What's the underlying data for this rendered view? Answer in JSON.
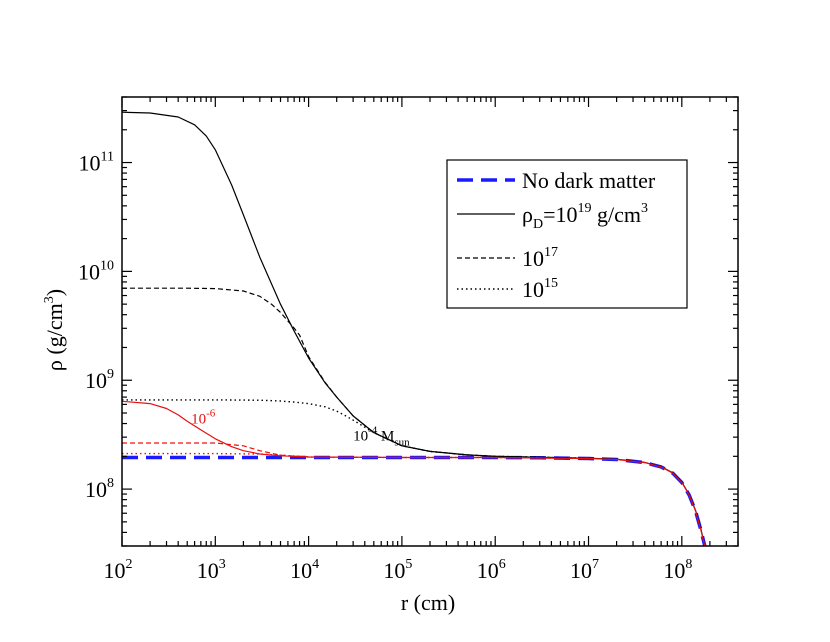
{
  "chart_data": {
    "type": "line",
    "title": "",
    "xlabel": "r (cm)",
    "ylabel_main": "ρ (g/cm",
    "ylabel_sup": "3",
    "ylabel_close": ")",
    "xscale": "log",
    "yscale": "log",
    "xlim": [
      100,
      400000000
    ],
    "ylim": [
      30000000,
      400000000000
    ],
    "x_ticks": [
      {
        "value": 100,
        "base": "10",
        "exp": "2"
      },
      {
        "value": 1000,
        "base": "10",
        "exp": "3"
      },
      {
        "value": 10000,
        "base": "10",
        "exp": "4"
      },
      {
        "value": 100000,
        "base": "10",
        "exp": "5"
      },
      {
        "value": 1000000,
        "base": "10",
        "exp": "6"
      },
      {
        "value": 10000000,
        "base": "10",
        "exp": "7"
      },
      {
        "value": 100000000,
        "base": "10",
        "exp": "8"
      }
    ],
    "y_ticks": [
      {
        "value": 100000000,
        "base": "10",
        "exp": "8"
      },
      {
        "value": 1000000000,
        "base": "10",
        "exp": "9"
      },
      {
        "value": 10000000000,
        "base": "10",
        "exp": "10"
      },
      {
        "value": 100000000000,
        "base": "10",
        "exp": "11"
      }
    ],
    "legend_position": "top-right",
    "legend": [
      {
        "series": "no-dm",
        "text": "No dark matter"
      },
      {
        "series": "dm19",
        "text": "ρ",
        "sub": "D",
        "mid": "=10",
        "sup": "19",
        "tail": " g/cm",
        "sup2": "3"
      },
      {
        "series": "dm17",
        "text": "10",
        "sup": "17"
      },
      {
        "series": "dm15",
        "text": "10",
        "sup": "15"
      }
    ],
    "annotations": [
      {
        "id": "mass-black",
        "base": "10",
        "sup": "-4",
        "rest": " M",
        "sub": "sun",
        "x": 30000,
        "y": 280000000,
        "color": "#000000"
      },
      {
        "id": "mass-red",
        "base": "10",
        "sup": "-6",
        "x": 550,
        "y": 400000000,
        "color": "#e8100f"
      }
    ],
    "series": [
      {
        "name": "no-dm",
        "label": "No dark matter",
        "color": "#1a1aff",
        "style": "dash-thick",
        "x": [
          100,
          1000,
          10000,
          100000,
          1000000,
          3000000,
          10000000,
          20000000,
          40000000,
          60000000,
          80000000,
          100000000,
          120000000,
          140000000,
          160000000,
          180000000
        ],
        "y": [
          195000000,
          195000000,
          195000000,
          195000000,
          195000000,
          194000000,
          191000000,
          187000000,
          175000000,
          160000000,
          140000000,
          115000000,
          88000000,
          63000000,
          42000000,
          28000000
        ]
      },
      {
        "name": "dm19",
        "label": "ρD=1e19 g/cm3, 1e-4 Msun",
        "color": "#000000",
        "style": "solid",
        "x": [
          100,
          200,
          400,
          600,
          800,
          1000,
          1500,
          2000,
          3000,
          5000,
          7000,
          10000,
          15000,
          20000,
          30000,
          50000,
          100000,
          200000,
          500000,
          1000000,
          3000000,
          10000000,
          20000000,
          40000000,
          60000000,
          80000000,
          100000000,
          120000000,
          140000000,
          160000000,
          180000000
        ],
        "y": [
          290000000000,
          285000000000,
          262000000000,
          222000000000,
          175000000000,
          131000000000,
          62000000000,
          33000000000,
          13500000000,
          5000000000,
          2820000000,
          1600000000,
          950000000,
          700000000,
          470000000,
          330000000,
          250000000,
          222000000,
          206000000,
          200000000,
          196000000,
          192000000,
          188000000,
          176000000,
          161000000,
          141000000,
          116000000,
          89000000,
          64000000,
          43000000,
          28000000
        ]
      },
      {
        "name": "dm17",
        "label": "1e17",
        "color": "#000000",
        "style": "dash",
        "x": [
          100,
          500,
          1000,
          2000,
          3000,
          4000,
          5000,
          6000,
          7000,
          8000,
          10000,
          15000,
          20000,
          30000,
          50000,
          100000,
          200000,
          500000,
          1000000,
          10000000
        ],
        "y": [
          7000000000,
          7000000000,
          6950000000,
          6600000000,
          5900000000,
          5000000000,
          4200000000,
          3500000000,
          3000000000,
          2600000000,
          1650000000,
          960000000,
          700000000,
          470000000,
          330000000,
          250000000,
          222000000,
          206000000,
          200000000,
          192000000
        ]
      },
      {
        "name": "dm15",
        "label": "1e15",
        "color": "#000000",
        "style": "dot",
        "x": [
          100,
          1000,
          3000,
          5000,
          7000,
          10000,
          15000,
          20000,
          25000,
          30000,
          40000,
          50000,
          100000,
          200000,
          500000,
          1000000,
          10000000
        ],
        "y": [
          660000000,
          660000000,
          655000000,
          645000000,
          630000000,
          610000000,
          570000000,
          520000000,
          470000000,
          430000000,
          370000000,
          330000000,
          250000000,
          222000000,
          206000000,
          200000000,
          192000000
        ]
      },
      {
        "name": "red-solid",
        "label": "1e-6 Msun, 1e19",
        "color": "#e8100f",
        "style": "solid",
        "x": [
          100,
          200,
          300,
          400,
          500,
          700,
          1000,
          1500,
          2000,
          3000,
          5000,
          10000,
          100000,
          1000000,
          10000000,
          20000000,
          40000000,
          60000000,
          80000000,
          100000000,
          120000000,
          140000000,
          160000000,
          180000000
        ],
        "y": [
          640000000,
          610000000,
          550000000,
          480000000,
          420000000,
          350000000,
          290000000,
          245000000,
          225000000,
          210000000,
          202000000,
          197000000,
          195000000,
          195000000,
          191000000,
          187000000,
          175000000,
          160000000,
          140000000,
          115000000,
          88000000,
          63000000,
          42000000,
          28000000
        ]
      },
      {
        "name": "red-dash",
        "label": "1e-6 Msun, 1e17",
        "color": "#e8100f",
        "style": "dash",
        "x": [
          100,
          1000,
          2000,
          3000,
          5000,
          10000,
          100000,
          1000000,
          10000000
        ],
        "y": [
          265000000,
          265000000,
          250000000,
          225000000,
          205000000,
          197000000,
          195000000,
          195000000,
          191000000
        ]
      },
      {
        "name": "red-dot",
        "label": "1e-6 Msun, 1e15",
        "color": "#e8100f",
        "style": "dot",
        "x": [
          100,
          1000,
          3000,
          6000,
          10000,
          100000,
          1000000,
          10000000
        ],
        "y": [
          212000000,
          212000000,
          210000000,
          203000000,
          197000000,
          195000000,
          195000000,
          191000000
        ]
      }
    ]
  }
}
